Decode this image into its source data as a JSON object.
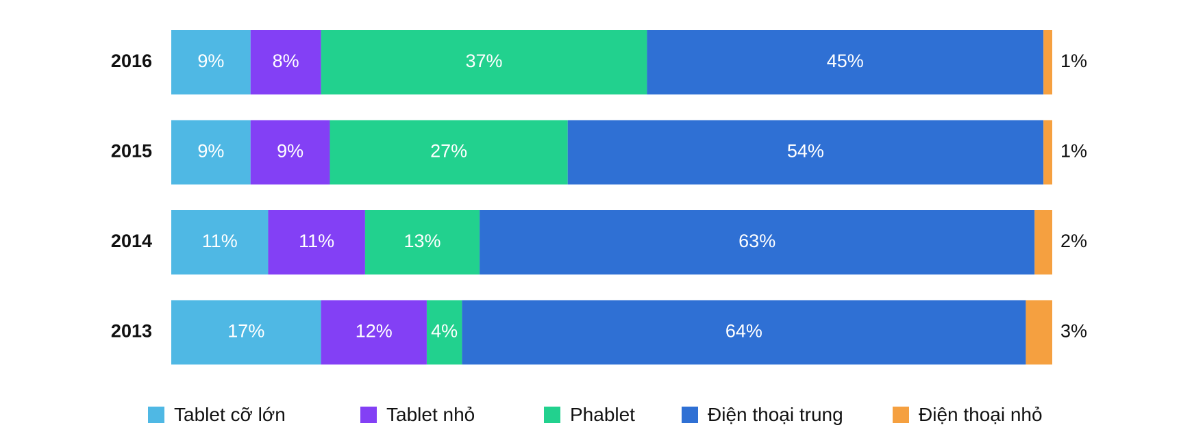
{
  "chart_data": {
    "type": "bar",
    "orientation": "horizontal",
    "stacked": true,
    "categories": [
      "2016",
      "2015",
      "2014",
      "2013"
    ],
    "series": [
      {
        "name": "Tablet cỡ lớn",
        "color": "#4FB8E4",
        "values": [
          9,
          9,
          11,
          17
        ],
        "labels": [
          "9%",
          "9%",
          "11%",
          "17%"
        ]
      },
      {
        "name": "Tablet nhỏ",
        "color": "#8340F5",
        "values": [
          8,
          9,
          11,
          12
        ],
        "labels": [
          "8%",
          "9%",
          "11%",
          "12%"
        ]
      },
      {
        "name": "Phablet",
        "color": "#22D18E",
        "values": [
          37,
          27,
          13,
          4
        ],
        "labels": [
          "37%",
          "27%",
          "13%",
          "4%"
        ]
      },
      {
        "name": "Điện thoại trung",
        "color": "#2F70D4",
        "values": [
          45,
          54,
          63,
          64
        ],
        "labels": [
          "45%",
          "54%",
          "63%",
          "64%"
        ]
      },
      {
        "name": "Điện thoại nhỏ",
        "color": "#F5A040",
        "values": [
          1,
          1,
          2,
          3
        ],
        "labels": [
          "1%",
          "1%",
          "2%",
          "3%"
        ]
      }
    ],
    "xlim": [
      0,
      100
    ],
    "grid": false,
    "legend_position": "bottom"
  }
}
